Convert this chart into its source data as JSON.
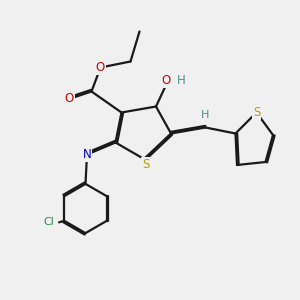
{
  "bg_color": "#f0f0f0",
  "bond_color": "#1a1a1a",
  "dbo": 0.055,
  "lw": 1.6,
  "atom_colors": {
    "S": "#b8a000",
    "O": "#cc0000",
    "N": "#0000cc",
    "Cl": "#2e8b57",
    "H": "#4a8f8f",
    "C": "#1a1a1a"
  },
  "xlim": [
    0,
    10
  ],
  "ylim": [
    0,
    10
  ]
}
